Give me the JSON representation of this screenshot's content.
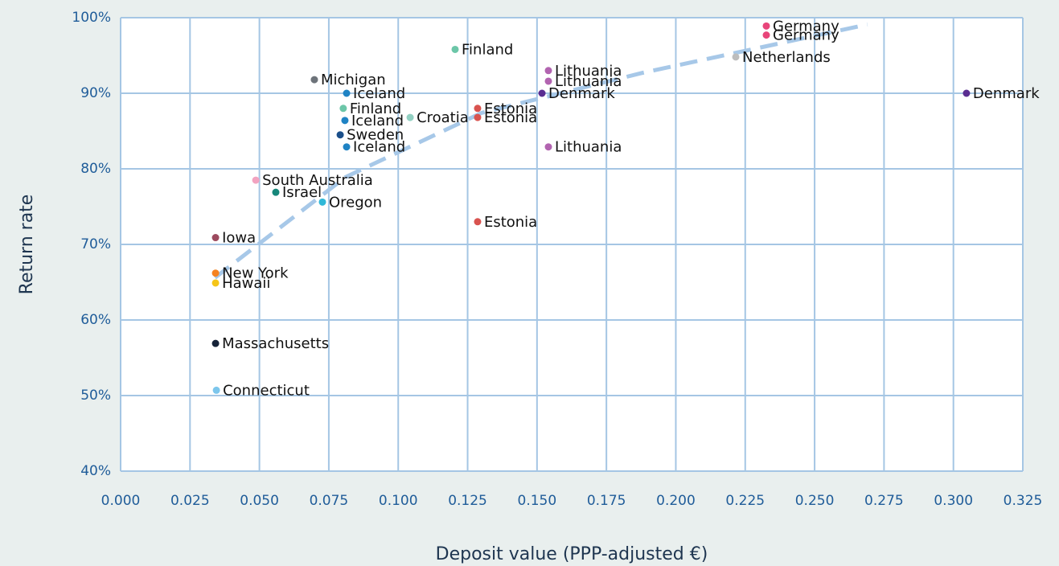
{
  "chart_data": {
    "type": "scatter",
    "x_label": "Deposit value (PPP-adjusted €)",
    "y_label": "Return rate",
    "labels": [
      "Germany",
      "Germany",
      "Netherlands",
      "Denmark",
      "Finland",
      "Lithuania",
      "Lithuania",
      "Denmark",
      "Lithuania",
      "Michigan",
      "Iceland",
      "Finland",
      "Croatia",
      "Estonia",
      "Estonia",
      "Iceland",
      "Sweden",
      "Iceland",
      "South Australia",
      "Israel",
      "Oregon",
      "Estonia",
      "Iowa",
      "New York",
      "Hawaii",
      "Massachusetts",
      "Connecticut"
    ],
    "x": [
      0.2326,
      0.2326,
      0.2216,
      0.3047,
      0.1205,
      0.1541,
      0.1541,
      0.1518,
      0.1541,
      0.0698,
      0.0814,
      0.0802,
      0.1043,
      0.1286,
      0.1286,
      0.0808,
      0.0791,
      0.0814,
      0.0487,
      0.0559,
      0.0727,
      0.1286,
      0.0342,
      0.0342,
      0.0342,
      0.0342,
      0.0345
    ],
    "values": [
      98.9,
      97.7,
      94.8,
      90,
      95.8,
      93,
      91.6,
      90,
      82.9,
      91.8,
      90,
      88,
      86.8,
      88,
      86.8,
      86.4,
      84.5,
      82.9,
      78.5,
      76.9,
      75.6,
      73,
      70.9,
      66.2,
      64.9,
      56.9,
      50.7
    ],
    "colors": [
      "#e8457a",
      "#e8457a",
      "#bdbdbd",
      "#5a2d91",
      "#6cc6a8",
      "#b264b0",
      "#b264b0",
      "#5a2d91",
      "#b264b0",
      "#6d737a",
      "#1f83c4",
      "#6cc6a8",
      "#92d0c2",
      "#d9534f",
      "#d9534f",
      "#1f83c4",
      "#1b4f8a",
      "#1f83c4",
      "#f2a3c0",
      "#17877a",
      "#2fb8d8",
      "#d9534f",
      "#9c4a5e",
      "#f58220",
      "#f5c518",
      "#152238",
      "#7cc6ec"
    ],
    "trendline": {
      "color": "#a7c8e8",
      "x": [
        0.034,
        0.081,
        0.13,
        0.188,
        0.269
      ],
      "values": [
        65.6,
        78.9,
        87.4,
        92.7,
        99.1
      ]
    },
    "xlim": [
      0,
      0.325
    ],
    "ylim": [
      40,
      100
    ],
    "xticks": [
      {
        "value": 0,
        "label": "0.000"
      },
      {
        "value": 0.025,
        "label": "0.025"
      },
      {
        "value": 0.05,
        "label": "0.050"
      },
      {
        "value": 0.075,
        "label": "0.075"
      },
      {
        "value": 0.1,
        "label": "0.100"
      },
      {
        "value": 0.125,
        "label": "0.125"
      },
      {
        "value": 0.15,
        "label": "0.150"
      },
      {
        "value": 0.175,
        "label": "0.175"
      },
      {
        "value": 0.2,
        "label": "0.200"
      },
      {
        "value": 0.225,
        "label": "0.225"
      },
      {
        "value": 0.25,
        "label": "0.250"
      },
      {
        "value": 0.275,
        "label": "0.275"
      },
      {
        "value": 0.3,
        "label": "0.300"
      },
      {
        "value": 0.325,
        "label": "0.325"
      }
    ],
    "yticks": [
      {
        "value": 40,
        "label": "40%"
      },
      {
        "value": 50,
        "label": "50%"
      },
      {
        "value": 60,
        "label": "60%"
      },
      {
        "value": 70,
        "label": "70%"
      },
      {
        "value": 80,
        "label": "80%"
      },
      {
        "value": 90,
        "label": "90%"
      },
      {
        "value": 100,
        "label": "100%"
      }
    ],
    "grid": true
  }
}
